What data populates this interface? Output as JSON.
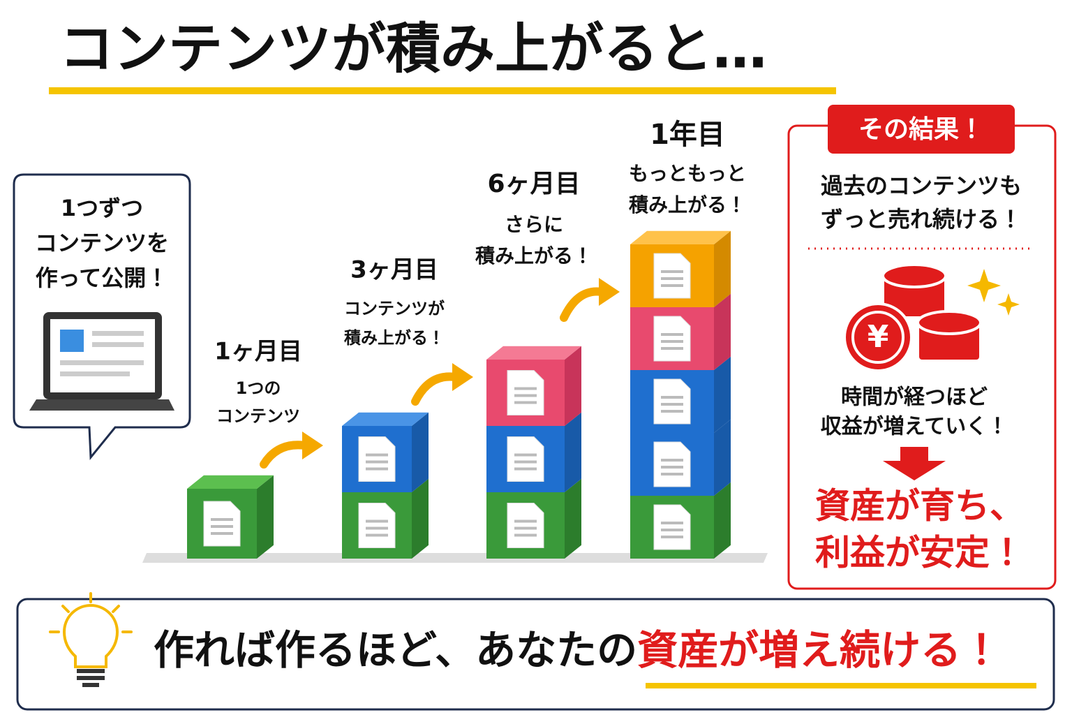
{
  "title": "コンテンツが積み上がると…",
  "intro": {
    "lines": [
      "1つずつ",
      "コンテンツを",
      "作って公開！"
    ]
  },
  "stages": [
    {
      "label": "1ヶ月目",
      "caption": [
        "1つの",
        "コンテンツ"
      ]
    },
    {
      "label": "3ヶ月目",
      "caption": [
        "コンテンツが",
        "積み上がる！"
      ]
    },
    {
      "label": "6ヶ月目",
      "caption": [
        "さらに",
        "積み上がる！"
      ]
    },
    {
      "label": "1年目",
      "caption": [
        "もっともっと",
        "積み上がる！"
      ]
    }
  ],
  "result": {
    "badge": "その結果！",
    "lines": [
      "過去のコンテンツも",
      "ずっと売れ続ける！"
    ],
    "coin": "¥",
    "growth": [
      "時間が経つほど",
      "収益が増えていく！"
    ],
    "conclusion": [
      "資産が育ち、",
      "利益が安定！"
    ]
  },
  "footer": {
    "text": "作れば作るほど、あなたの",
    "highlight": "資産が増え続ける！"
  }
}
